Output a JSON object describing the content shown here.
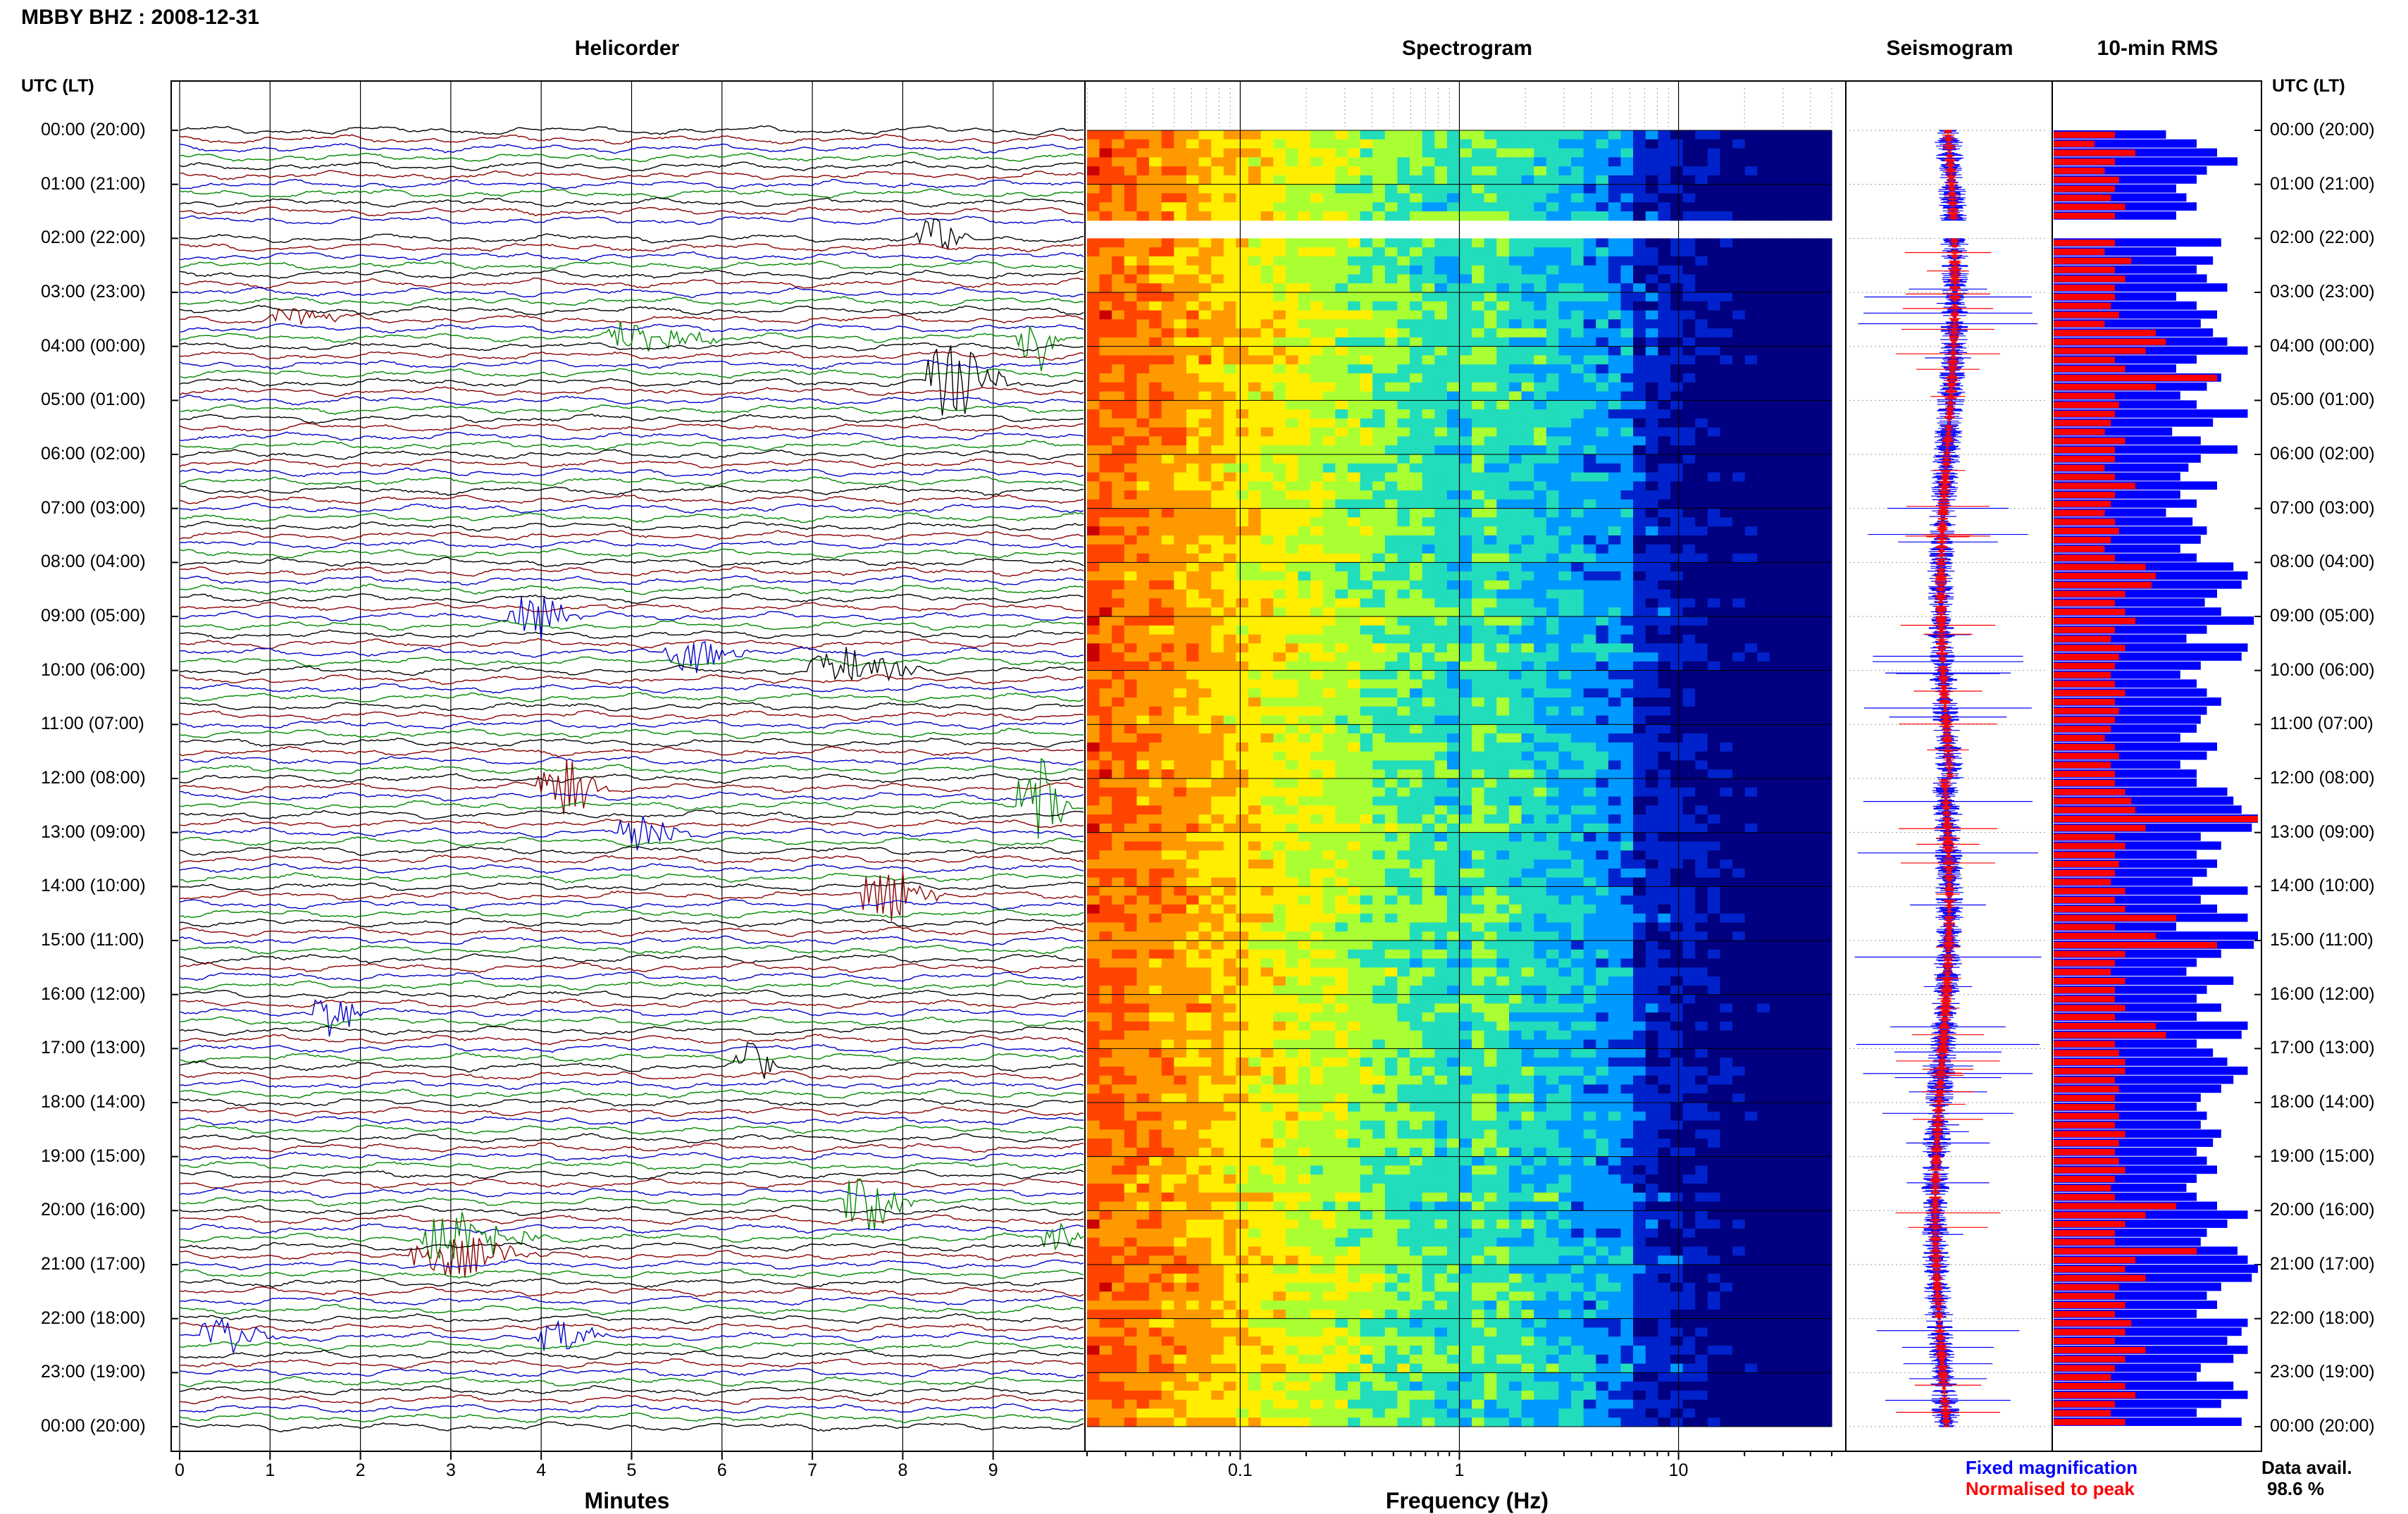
{
  "header": {
    "title": "MBBY BHZ : 2008-12-31",
    "panels": [
      "Helicorder",
      "Spectrogram",
      "Seismogram",
      "10-min RMS"
    ],
    "left_axis_header": "UTC (LT)",
    "right_axis_header": "UTC (LT)"
  },
  "footer": {
    "x_title_helicorder": "Minutes",
    "x_title_spectrogram": "Frequency (Hz)",
    "legend_fixed": "Fixed magnification",
    "legend_normalised": "Normalised to peak",
    "avail_label": "Data avail.",
    "avail_value": "98.6 %"
  },
  "colors": {
    "trace_cycle": [
      "#000000",
      "#8b0000",
      "#0000cc",
      "#008800"
    ],
    "fixed_blue": "#0000ff",
    "normalised_red": "#ff0000"
  },
  "chart_data": {
    "type": "line",
    "time_ticks": [
      "00:00 (20:00)",
      "01:00 (21:00)",
      "02:00 (22:00)",
      "03:00 (23:00)",
      "04:00 (00:00)",
      "05:00 (01:00)",
      "06:00 (02:00)",
      "07:00 (03:00)",
      "08:00 (04:00)",
      "09:00 (05:00)",
      "10:00 (06:00)",
      "11:00 (07:00)",
      "12:00 (08:00)",
      "13:00 (09:00)",
      "14:00 (10:00)",
      "15:00 (11:00)",
      "16:00 (12:00)",
      "17:00 (13:00)",
      "18:00 (14:00)",
      "19:00 (15:00)",
      "20:00 (16:00)",
      "21:00 (17:00)",
      "22:00 (18:00)",
      "23:00 (19:00)",
      "00:00 (20:00)"
    ],
    "helicorder": {
      "x_ticks": [
        "0",
        "1",
        "2",
        "3",
        "4",
        "5",
        "6",
        "7",
        "8",
        "9"
      ],
      "xlim": [
        0,
        10
      ],
      "lines_per_hour": 6,
      "gap_hours": [
        1.667,
        2.0
      ],
      "events": [
        {
          "hour": 2.0,
          "minute": 8.2,
          "duration": 0.6,
          "amp": 1.0
        },
        {
          "hour": 3.5,
          "minute": 1.0,
          "duration": 1.2,
          "amp": 0.5
        },
        {
          "hour": 3.833,
          "minute": 4.8,
          "duration": 1.4,
          "amp": 0.8
        },
        {
          "hour": 3.833,
          "minute": 9.3,
          "duration": 0.5,
          "amp": 1.8
        },
        {
          "hour": 4.667,
          "minute": 8.3,
          "duration": 1.0,
          "amp": 1.8
        },
        {
          "hour": 9.0,
          "minute": 3.7,
          "duration": 0.8,
          "amp": 1.2
        },
        {
          "hour": 9.667,
          "minute": 5.4,
          "duration": 1.0,
          "amp": 0.8
        },
        {
          "hour": 10.0,
          "minute": 7.0,
          "duration": 1.4,
          "amp": 0.9
        },
        {
          "hour": 12.167,
          "minute": 4.0,
          "duration": 0.8,
          "amp": 1.6
        },
        {
          "hour": 12.5,
          "minute": 9.3,
          "duration": 0.6,
          "amp": 2.5
        },
        {
          "hour": 13.0,
          "minute": 4.9,
          "duration": 0.8,
          "amp": 1.1
        },
        {
          "hour": 14.167,
          "minute": 7.6,
          "duration": 0.9,
          "amp": 1.6
        },
        {
          "hour": 16.333,
          "minute": 1.5,
          "duration": 0.6,
          "amp": 1.2
        },
        {
          "hour": 17.333,
          "minute": 6.2,
          "duration": 0.5,
          "amp": 1.0
        },
        {
          "hour": 19.833,
          "minute": 7.4,
          "duration": 0.8,
          "amp": 1.3
        },
        {
          "hour": 20.5,
          "minute": 2.7,
          "duration": 1.4,
          "amp": 1.4
        },
        {
          "hour": 20.833,
          "minute": 2.6,
          "duration": 1.5,
          "amp": 1.0
        },
        {
          "hour": 20.5,
          "minute": 9.6,
          "duration": 0.4,
          "amp": 1.3
        },
        {
          "hour": 22.333,
          "minute": 0.3,
          "duration": 0.8,
          "amp": 0.8
        },
        {
          "hour": 22.333,
          "minute": 4.0,
          "duration": 0.8,
          "amp": 0.8
        }
      ]
    },
    "spectrogram": {
      "x_scale": "log",
      "xlim": [
        0.02,
        50
      ],
      "x_ticks": [
        "0.1",
        "1",
        "10"
      ],
      "colormap": [
        "#cc0000",
        "#ff4400",
        "#ff9900",
        "#ffee00",
        "#aaff33",
        "#22ddbb",
        "#0099ff",
        "#0022cc",
        "#000080"
      ]
    },
    "seismogram": {
      "series": [
        {
          "name": "Fixed magnification",
          "color": "#0000ff"
        },
        {
          "name": "Normalised to peak",
          "color": "#ff0000"
        }
      ]
    },
    "rms_10min": {
      "series_fixed": [
        0.55,
        0.7,
        0.8,
        0.9,
        0.75,
        0.7,
        0.6,
        0.65,
        0.7,
        0.6,
        0.55,
        0.62,
        0.82,
        0.6,
        0.78,
        0.7,
        0.75,
        0.85,
        0.6,
        0.7,
        0.8,
        0.72,
        0.78,
        0.85,
        0.95,
        0.7,
        0.6,
        0.82,
        0.75,
        0.62,
        0.7,
        0.95,
        0.78,
        0.58,
        0.72,
        0.9,
        0.72,
        0.66,
        0.62,
        0.8,
        0.62,
        0.7,
        0.55,
        0.68,
        0.75,
        0.72,
        0.62,
        0.7,
        0.88,
        0.95,
        0.92,
        0.8,
        0.74,
        0.82,
        0.98,
        0.75,
        0.65,
        0.95,
        0.92,
        0.72,
        0.62,
        0.7,
        0.75,
        0.82,
        0.75,
        0.72,
        0.7,
        0.62,
        0.8,
        0.75,
        0.62,
        0.7,
        0.7,
        0.85,
        0.88,
        0.92,
        1.0,
        0.97,
        0.72,
        0.82,
        0.7,
        0.8,
        0.75,
        0.68,
        0.95,
        0.72,
        0.8,
        0.95,
        0.6,
        1.0,
        0.98,
        0.82,
        0.7,
        0.65,
        0.88,
        0.75,
        0.7,
        0.82,
        0.7,
        0.95,
        0.92,
        0.7,
        0.78,
        0.85,
        0.95,
        0.88,
        0.82,
        0.72,
        0.7,
        0.75,
        0.72,
        0.82,
        0.78,
        0.7,
        0.75,
        0.8,
        0.7,
        0.65,
        0.7,
        0.8,
        0.95,
        0.85,
        0.75,
        0.72,
        0.9,
        0.95,
        1.0,
        0.97,
        0.82,
        0.75,
        0.8,
        0.7,
        0.95,
        0.92,
        0.85,
        0.95,
        0.88,
        0.72,
        0.7,
        0.88,
        0.95,
        0.82,
        0.7,
        0.92
      ],
      "series_normalised": [
        0.3,
        0.2,
        0.4,
        0.3,
        0.25,
        0.32,
        0.3,
        0.28,
        0.35,
        0.3,
        0.22,
        0.28,
        0.3,
        0.25,
        0.38,
        0.3,
        0.35,
        0.3,
        0.3,
        0.28,
        0.32,
        0.25,
        0.5,
        0.55,
        0.45,
        0.3,
        0.35,
        0.8,
        0.5,
        0.3,
        0.32,
        0.3,
        0.28,
        0.25,
        0.35,
        0.3,
        0.3,
        0.25,
        0.3,
        0.4,
        0.3,
        0.28,
        0.25,
        0.3,
        0.32,
        0.28,
        0.25,
        0.3,
        0.45,
        0.5,
        0.48,
        0.35,
        0.3,
        0.35,
        0.4,
        0.3,
        0.28,
        0.35,
        0.32,
        0.3,
        0.28,
        0.3,
        0.35,
        0.3,
        0.32,
        0.3,
        0.28,
        0.25,
        0.3,
        0.32,
        0.28,
        0.3,
        0.3,
        0.35,
        0.38,
        0.4,
        1.0,
        0.45,
        0.3,
        0.35,
        0.3,
        0.32,
        0.3,
        0.28,
        0.35,
        0.3,
        0.35,
        0.6,
        0.3,
        0.5,
        0.8,
        0.35,
        0.3,
        0.28,
        0.35,
        0.3,
        0.3,
        0.35,
        0.3,
        0.5,
        0.55,
        0.3,
        0.32,
        0.35,
        0.35,
        0.3,
        0.32,
        0.3,
        0.3,
        0.32,
        0.3,
        0.35,
        0.32,
        0.3,
        0.32,
        0.35,
        0.3,
        0.28,
        0.3,
        0.6,
        0.45,
        0.35,
        0.3,
        0.3,
        0.7,
        0.4,
        0.35,
        0.45,
        0.32,
        0.3,
        0.35,
        0.3,
        0.38,
        0.35,
        0.3,
        0.45,
        0.35,
        0.3,
        0.28,
        0.35,
        0.4,
        0.3,
        0.28,
        0.35
      ]
    }
  }
}
